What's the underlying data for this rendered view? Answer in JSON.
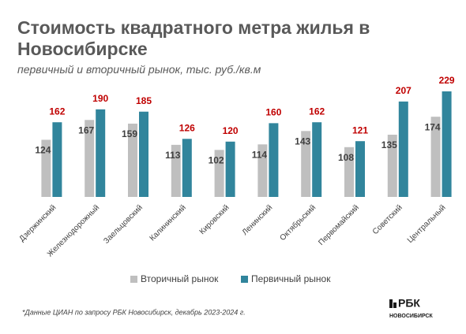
{
  "chart_data": {
    "type": "grouped_bar",
    "title": "Стоимость квадратного метра жилья в Новосибирске",
    "subtitle": "первичный и вторичный рынок, тыс. руб./кв.м",
    "categories": [
      "Дзержинский",
      "Железнодорожный",
      "Заельцовский",
      "Калининский",
      "Кировский",
      "Ленинский",
      "Октябрьский",
      "Первомайский",
      "Советский",
      "Центральный"
    ],
    "series": [
      {
        "name": "Вторичный рынок",
        "color": "#bfbfbf",
        "label_color": "#404040",
        "values": [
          124,
          167,
          159,
          113,
          102,
          114,
          143,
          108,
          135,
          174
        ]
      },
      {
        "name": "Первичный рынок",
        "color": "#31859c",
        "label_color": "#c00000",
        "values": [
          162,
          190,
          185,
          126,
          120,
          160,
          162,
          121,
          207,
          229
        ]
      }
    ],
    "legend": "bottom",
    "footnote": "*Данные ЦИАН по запросу РБК Новосибирск, декабрь 2023-2024 г.",
    "logo": {
      "name": "РБК",
      "region": "НОВОСИБИРСК"
    }
  }
}
